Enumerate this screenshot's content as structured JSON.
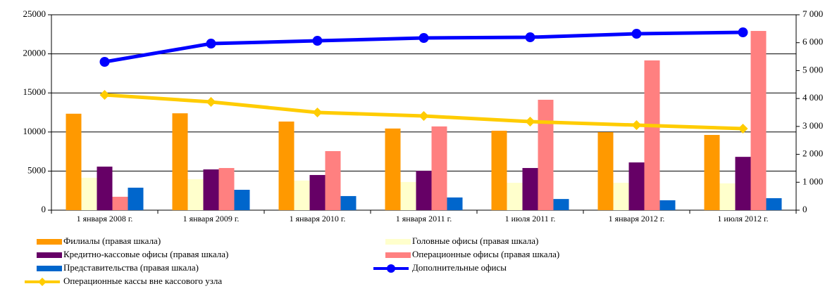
{
  "chart_data": {
    "type": "bar-line",
    "categories": [
      "1 января 2008 г.",
      "1 января 2009 г.",
      "1 января 2010 г.",
      "1 января 2011 г.",
      "1 июля 2011 г.",
      "1 января 2012 г.",
      "1 июля 2012 г."
    ],
    "ylim": [
      0,
      25000
    ],
    "yticks": [
      0,
      5000,
      10000,
      15000,
      20000,
      25000
    ],
    "y2lim": [
      0,
      7000
    ],
    "y2ticks": [
      {
        "value": 0,
        "label": "0"
      },
      {
        "value": 1000,
        "label": "1 000"
      },
      {
        "value": 2000,
        "label": "2 000"
      },
      {
        "value": 3000,
        "label": "3 000"
      },
      {
        "value": 4000,
        "label": "4 000"
      },
      {
        "value": 5000,
        "label": "5 000"
      },
      {
        "value": 6000,
        "label": "6 000"
      },
      {
        "value": 7000,
        "label": "7 000"
      }
    ],
    "grid": true,
    "legend": "bottom",
    "series": [
      {
        "name": "Филиалы (правая шкала)",
        "kind": "bar",
        "axis": "y2",
        "color": "#ff9900",
        "values": [
          3455,
          3470,
          3175,
          2925,
          2845,
          2795,
          2695
        ]
      },
      {
        "name": "Головные офисы (правая шкала)",
        "kind": "bar",
        "axis": "y2",
        "color": "#ffffcc",
        "values": [
          1160,
          1110,
          1060,
          1010,
          980,
          980,
          960
        ]
      },
      {
        "name": "Кредитно-кассовые офисы (правая шкала)",
        "kind": "bar",
        "axis": "y2",
        "color": "#660066",
        "values": [
          1560,
          1460,
          1260,
          1410,
          1510,
          1710,
          1910
        ]
      },
      {
        "name": "Операционные офисы (правая шкала)",
        "kind": "bar",
        "axis": "y2",
        "color": "#ff8080",
        "values": [
          480,
          1510,
          2115,
          3000,
          3955,
          5365,
          6420
        ]
      },
      {
        "name": "Представительства (правая шкала)",
        "kind": "bar",
        "axis": "y2",
        "color": "#0066cc",
        "values": [
          805,
          730,
          505,
          455,
          400,
          355,
          430
        ]
      },
      {
        "name": "Дополнительные офисы",
        "kind": "line",
        "marker": "circle",
        "color": "#0000ff",
        "values": [
          18975,
          21310,
          21670,
          22030,
          22120,
          22570,
          22750
        ]
      },
      {
        "name": "Операционные кассы вне кассового узла",
        "kind": "line",
        "marker": "diamond",
        "color": "#ffcc00",
        "values": [
          14750,
          13850,
          12500,
          12050,
          11330,
          10880,
          10430
        ]
      }
    ]
  }
}
